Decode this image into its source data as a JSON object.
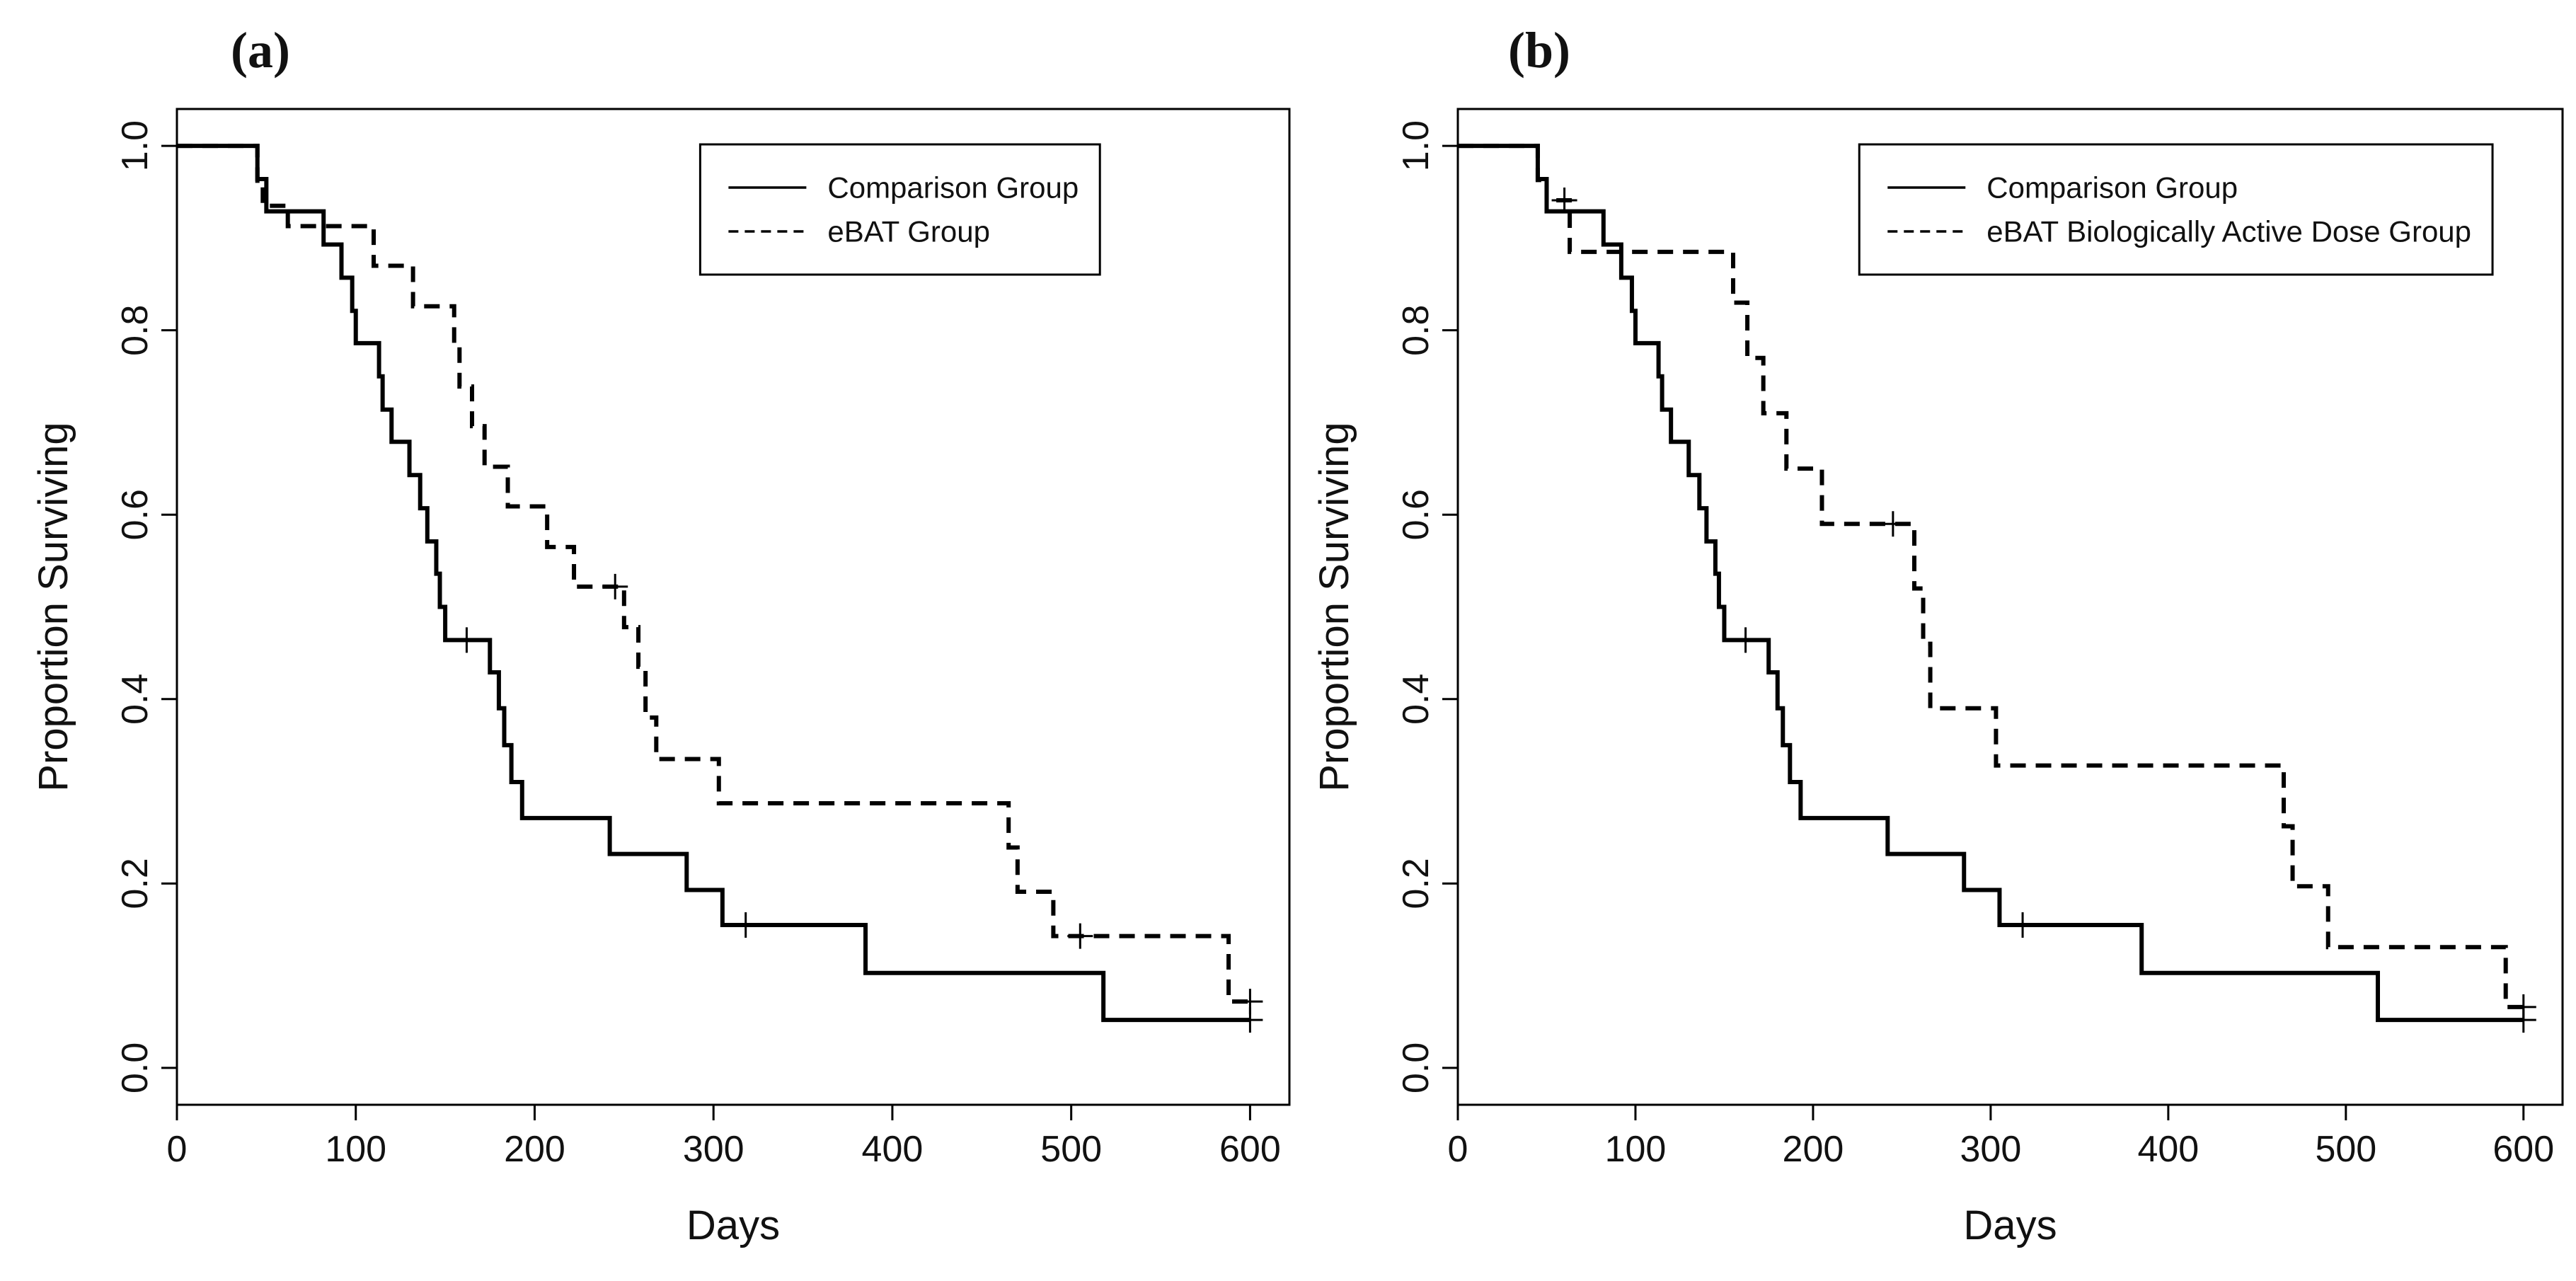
{
  "chart_data": [
    {
      "type": "step",
      "title": "(a)",
      "xlabel": "Days",
      "ylabel": "Proportion Surviving",
      "xlim": [
        0,
        622
      ],
      "ylim": [
        -0.04,
        1.04
      ],
      "xticks": [
        0,
        100,
        200,
        300,
        400,
        500,
        600
      ],
      "yticks": [
        {
          "value": 0,
          "label": "0.0"
        },
        0.2,
        0.4,
        0.6,
        0.8,
        {
          "value": 1,
          "label": "1.0"
        }
      ],
      "legend": "top-right",
      "series": [
        {
          "name": "Comparison Group",
          "color": "#000000",
          "dash": "solid",
          "x": [
            0,
            45,
            50,
            82,
            92,
            98,
            100,
            113,
            115,
            120,
            130,
            136,
            140,
            145,
            147,
            150,
            175,
            180,
            183,
            187,
            193,
            242,
            285,
            305,
            385,
            518,
            600
          ],
          "values": [
            1,
            0.964,
            0.929,
            0.893,
            0.857,
            0.821,
            0.786,
            0.75,
            0.714,
            0.679,
            0.643,
            0.607,
            0.571,
            0.536,
            0.5,
            0.464,
            0.429,
            0.39,
            0.35,
            0.31,
            0.271,
            0.232,
            0.193,
            0.155,
            0.103,
            0.052,
            0.052
          ],
          "censor_x": [
            162,
            318,
            600
          ],
          "censor_values": [
            0.464,
            0.155,
            0.052
          ]
        },
        {
          "name": "eBAT Group",
          "color": "#000000",
          "dash": "dashed",
          "x": [
            0,
            45,
            48,
            62,
            110,
            132,
            155,
            158,
            165,
            172,
            185,
            207,
            222,
            250,
            258,
            262,
            268,
            303,
            465,
            470,
            490,
            588,
            600
          ],
          "values": [
            1,
            0.957,
            0.935,
            0.913,
            0.87,
            0.826,
            0.783,
            0.739,
            0.696,
            0.652,
            0.609,
            0.565,
            0.522,
            0.478,
            0.435,
            0.38,
            0.335,
            0.287,
            0.239,
            0.191,
            0.143,
            0.072,
            0.072
          ],
          "censor_x": [
            245,
            505,
            600
          ],
          "censor_values": [
            0.522,
            0.143,
            0.072
          ]
        }
      ]
    },
    {
      "type": "step",
      "title": "(b)",
      "xlabel": "Days",
      "ylabel": "Proportion Surviving",
      "xlim": [
        0,
        622
      ],
      "ylim": [
        -0.04,
        1.04
      ],
      "xticks": [
        0,
        100,
        200,
        300,
        400,
        500,
        600
      ],
      "yticks": [
        {
          "value": 0,
          "label": "0.0"
        },
        0.2,
        0.4,
        0.6,
        0.8,
        {
          "value": 1,
          "label": "1.0"
        }
      ],
      "legend": "top-right",
      "series": [
        {
          "name": "Comparison Group",
          "color": "#000000",
          "dash": "solid",
          "x": [
            0,
            45,
            50,
            82,
            92,
            98,
            100,
            113,
            115,
            120,
            130,
            136,
            140,
            145,
            147,
            150,
            175,
            180,
            183,
            187,
            193,
            242,
            285,
            305,
            385,
            518,
            600
          ],
          "values": [
            1,
            0.964,
            0.929,
            0.893,
            0.857,
            0.821,
            0.786,
            0.75,
            0.714,
            0.679,
            0.643,
            0.607,
            0.571,
            0.536,
            0.5,
            0.464,
            0.429,
            0.39,
            0.35,
            0.31,
            0.271,
            0.232,
            0.193,
            0.155,
            0.103,
            0.052,
            0.052
          ],
          "censor_x": [
            162,
            318,
            600
          ],
          "censor_values": [
            0.464,
            0.155,
            0.052
          ]
        },
        {
          "name": "eBAT Biologically Active Dose Group",
          "color": "#000000",
          "dash": "dashed",
          "x": [
            0,
            45,
            50,
            63,
            155,
            163,
            172,
            185,
            205,
            257,
            262,
            266,
            303,
            465,
            470,
            490,
            590,
            600
          ],
          "values": [
            1,
            0.963,
            0.941,
            0.885,
            0.83,
            0.77,
            0.71,
            0.65,
            0.59,
            0.52,
            0.46,
            0.39,
            0.328,
            0.262,
            0.197,
            0.131,
            0.066,
            0.066
          ],
          "censor_x": [
            60,
            245,
            600
          ],
          "censor_values": [
            0.941,
            0.59,
            0.066
          ]
        }
      ]
    }
  ]
}
